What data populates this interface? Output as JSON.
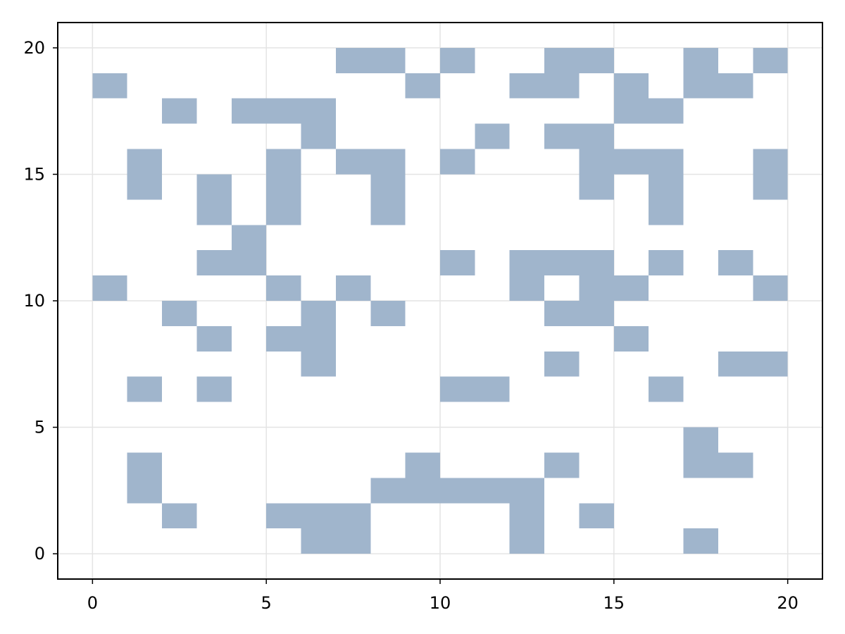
{
  "chart_data": {
    "type": "heatmap",
    "title": "",
    "xlabel": "",
    "ylabel": "",
    "xlim": [
      -1,
      21
    ],
    "ylim": [
      -1,
      21
    ],
    "x_ticks": [
      0,
      5,
      10,
      15,
      20
    ],
    "y_ticks": [
      0,
      5,
      10,
      15,
      20
    ],
    "grid": true,
    "fill_color": "#a0b5cc",
    "cells": [
      [
        6,
        0
      ],
      [
        7,
        0
      ],
      [
        12,
        0
      ],
      [
        17,
        0
      ],
      [
        2,
        1
      ],
      [
        5,
        1
      ],
      [
        6,
        1
      ],
      [
        7,
        1
      ],
      [
        12,
        1
      ],
      [
        14,
        1
      ],
      [
        1,
        2
      ],
      [
        8,
        2
      ],
      [
        9,
        2
      ],
      [
        10,
        2
      ],
      [
        11,
        2
      ],
      [
        12,
        2
      ],
      [
        1,
        3
      ],
      [
        9,
        3
      ],
      [
        13,
        3
      ],
      [
        17,
        3
      ],
      [
        18,
        3
      ],
      [
        17,
        4
      ],
      [
        1,
        6
      ],
      [
        3,
        6
      ],
      [
        10,
        6
      ],
      [
        11,
        6
      ],
      [
        16,
        6
      ],
      [
        6,
        7
      ],
      [
        13,
        7
      ],
      [
        18,
        7
      ],
      [
        19,
        7
      ],
      [
        3,
        8
      ],
      [
        5,
        8
      ],
      [
        6,
        8
      ],
      [
        15,
        8
      ],
      [
        2,
        9
      ],
      [
        6,
        9
      ],
      [
        8,
        9
      ],
      [
        13,
        9
      ],
      [
        14,
        9
      ],
      [
        0,
        10
      ],
      [
        5,
        10
      ],
      [
        7,
        10
      ],
      [
        12,
        10
      ],
      [
        14,
        10
      ],
      [
        15,
        10
      ],
      [
        19,
        10
      ],
      [
        3,
        11
      ],
      [
        4,
        11
      ],
      [
        10,
        11
      ],
      [
        12,
        11
      ],
      [
        13,
        11
      ],
      [
        14,
        11
      ],
      [
        16,
        11
      ],
      [
        18,
        11
      ],
      [
        4,
        12
      ],
      [
        3,
        13
      ],
      [
        5,
        13
      ],
      [
        8,
        13
      ],
      [
        16,
        13
      ],
      [
        1,
        14
      ],
      [
        3,
        14
      ],
      [
        5,
        14
      ],
      [
        8,
        14
      ],
      [
        14,
        14
      ],
      [
        16,
        14
      ],
      [
        19,
        14
      ],
      [
        1,
        15
      ],
      [
        5,
        15
      ],
      [
        7,
        15
      ],
      [
        8,
        15
      ],
      [
        10,
        15
      ],
      [
        14,
        15
      ],
      [
        15,
        15
      ],
      [
        16,
        15
      ],
      [
        19,
        15
      ],
      [
        6,
        16
      ],
      [
        11,
        16
      ],
      [
        13,
        16
      ],
      [
        14,
        16
      ],
      [
        2,
        17
      ],
      [
        4,
        17
      ],
      [
        5,
        17
      ],
      [
        6,
        17
      ],
      [
        15,
        17
      ],
      [
        16,
        17
      ],
      [
        0,
        18
      ],
      [
        9,
        18
      ],
      [
        12,
        18
      ],
      [
        13,
        18
      ],
      [
        15,
        18
      ],
      [
        17,
        18
      ],
      [
        18,
        18
      ],
      [
        7,
        19
      ],
      [
        8,
        19
      ],
      [
        10,
        19
      ],
      [
        13,
        19
      ],
      [
        14,
        19
      ],
      [
        17,
        19
      ],
      [
        19,
        19
      ]
    ]
  }
}
